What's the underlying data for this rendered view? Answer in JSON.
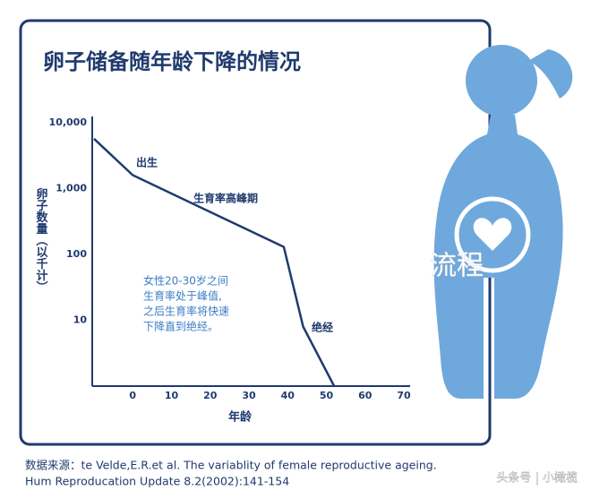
{
  "chart_data": {
    "type": "line",
    "title": "卵子储备随年龄下降的情况",
    "y_label": "卵子数量（以千计）",
    "x_label": "年龄",
    "x": [
      -10,
      0,
      39,
      44,
      52
    ],
    "series": [
      {
        "name": "卵子数量",
        "color": "#1f3a6e",
        "values": [
          5700,
          1600,
          130,
          8,
          1
        ]
      }
    ],
    "log_scale": true,
    "xlim": [
      -10,
      70
    ],
    "xticks": [
      0,
      10,
      20,
      30,
      40,
      50,
      60,
      70
    ],
    "ylim": [
      1,
      10000
    ],
    "yticks": [
      {
        "value": 10000,
        "label": "10,000"
      },
      {
        "value": 1000,
        "label": "1,000"
      },
      100,
      10
    ],
    "annotations": [
      "出生",
      "生育率高峰期",
      "绝经"
    ],
    "note": [
      "女性20-30岁之间",
      "生育率处于峰值,",
      "之后生育率将快速",
      "下降直到绝经。"
    ],
    "overlay_text": "流程",
    "source": [
      "数据来源：te Velde,E.R.et al. The variablity of female reproductive ageing.",
      "Hum Reproducation Update 8.2(2002):141-154"
    ],
    "watermark": "头条号 | 小橄榄"
  }
}
